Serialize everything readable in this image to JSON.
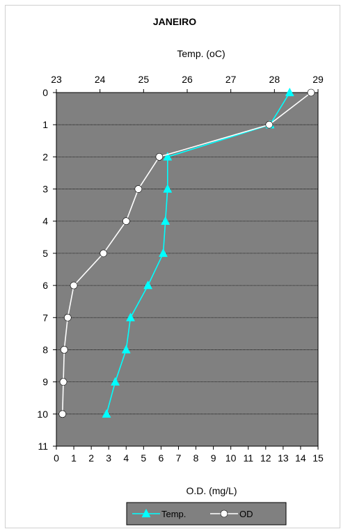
{
  "chart_data": {
    "type": "line",
    "title": "JANEIRO",
    "y_axis": {
      "label": "",
      "range": [
        0,
        11
      ],
      "inverted": true,
      "ticks": [
        "0",
        "1",
        "2",
        "3",
        "4",
        "5",
        "6",
        "7",
        "8",
        "9",
        "10",
        "11"
      ]
    },
    "x_top": {
      "label": "Temp. (oC)",
      "range": [
        23,
        29
      ],
      "ticks": [
        "23",
        "24",
        "25",
        "26",
        "27",
        "28",
        "29"
      ]
    },
    "x_bottom": {
      "label": "O.D. (mg/L)",
      "range": [
        0,
        15
      ],
      "ticks": [
        "0",
        "1",
        "2",
        "3",
        "4",
        "5",
        "6",
        "7",
        "8",
        "9",
        "10",
        "11",
        "12",
        "13",
        "14",
        "15"
      ]
    },
    "grid": true,
    "plot_background": "#808080",
    "legend_position": "bottom",
    "series": [
      {
        "name": "Temp.",
        "axis": "x_top",
        "color": "#00ffff",
        "marker": "triangle",
        "x": [
          28.35,
          27.9,
          25.55,
          25.55,
          25.5,
          25.45,
          25.1,
          24.7,
          24.6,
          24.35,
          24.15
        ],
        "y": [
          0,
          1,
          2,
          3,
          4,
          5,
          6,
          7,
          8,
          9,
          10
        ]
      },
      {
        "name": "OD",
        "axis": "x_bottom",
        "color": "#ffffff",
        "marker": "circle",
        "x": [
          14.6,
          12.2,
          5.9,
          4.7,
          4.0,
          2.7,
          1.0,
          0.65,
          0.45,
          0.4,
          0.35
        ],
        "y": [
          0,
          1,
          2,
          3,
          4,
          5,
          6,
          7,
          8,
          9,
          10
        ]
      }
    ]
  }
}
